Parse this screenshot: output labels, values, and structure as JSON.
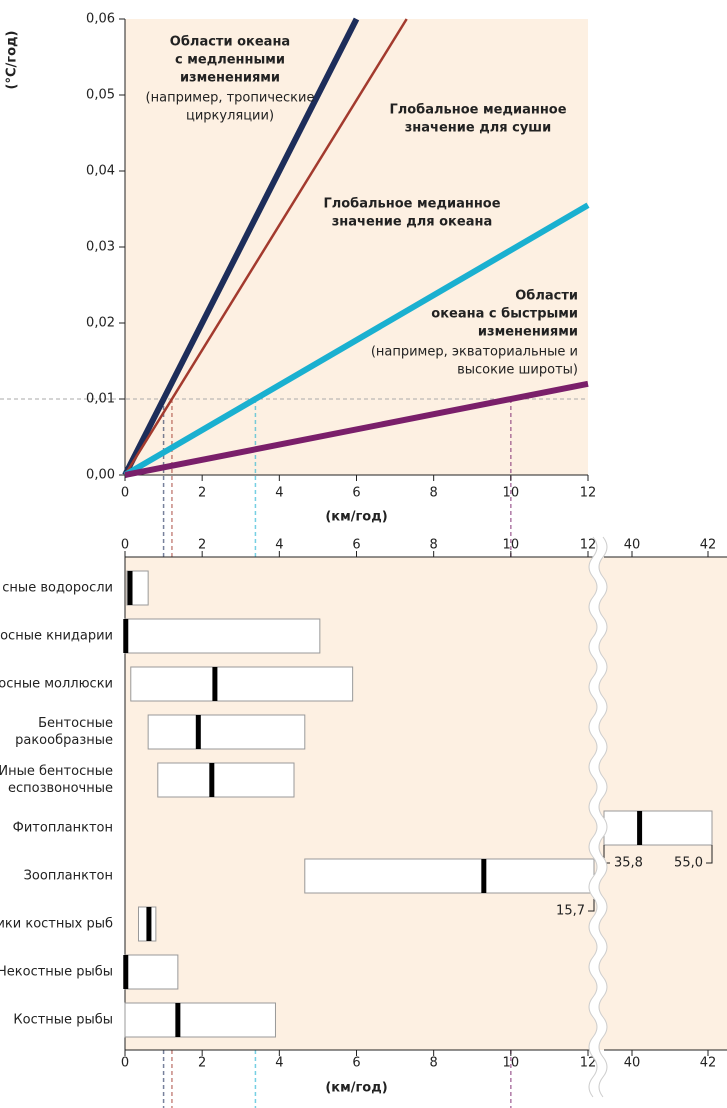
{
  "chart_data": [
    {
      "type": "line",
      "xlabel": "(км/год)",
      "ylabel": "(°C/год)",
      "xlim": [
        0,
        12
      ],
      "ylim": [
        0,
        0.06
      ],
      "xticks": [
        0,
        2,
        4,
        6,
        8,
        10,
        12
      ],
      "yticks": [
        {
          "value": 0,
          "label": "0,00"
        },
        {
          "value": 0.01,
          "label": "0,01"
        },
        {
          "value": 0.02,
          "label": "0,02"
        },
        {
          "value": 0.03,
          "label": "0,03"
        },
        {
          "value": 0.04,
          "label": "0,04"
        },
        {
          "value": 0.05,
          "label": "0,05"
        },
        {
          "value": 0.06,
          "label": "0,06"
        }
      ],
      "guide_y": 0.01,
      "series": [
        {
          "name_lines": [
            "Области океана",
            "с медленными",
            "изменениями"
          ],
          "note_lines": [
            "(например, тропические",
            "циркуляции)"
          ],
          "color": "#1d2d5a",
          "x": [
            0,
            6
          ],
          "values": [
            0,
            0.06
          ]
        },
        {
          "name_lines": [
            "Глобальное медианное",
            "значение для суши"
          ],
          "color": "#a33a2e",
          "x": [
            0,
            7.3
          ],
          "values": [
            0,
            0.06
          ]
        },
        {
          "name_lines": [
            "Глобальное медианное",
            "значение для океана"
          ],
          "color": "#1ab0d0",
          "x": [
            0,
            12
          ],
          "values": [
            0,
            0.0355
          ]
        },
        {
          "name_lines": [
            "Области",
            "океана с быстрыми",
            "изменениями"
          ],
          "note_lines": [
            "(например, экваториальные и",
            "высокие широты)"
          ],
          "color": "#7a1f6a",
          "x": [
            0,
            12
          ],
          "values": [
            0,
            0.012
          ]
        }
      ]
    },
    {
      "type": "range",
      "xlabel": "(км/год)",
      "xlim": [
        0,
        12
      ],
      "xlim2": [
        40,
        42
      ],
      "xticks": [
        0,
        2,
        4,
        6,
        8,
        10,
        12
      ],
      "xticks2": [
        40,
        42
      ],
      "rows": [
        {
          "label_lines": [
            "сные водоросли"
          ],
          "min": 0.05,
          "median": 0.13,
          "max": 0.6
        },
        {
          "label_lines": [
            "осные книдарии"
          ],
          "min": 0,
          "median": 0.02,
          "max": 5.05
        },
        {
          "label_lines": [
            "осные моллюски"
          ],
          "min": 0.15,
          "median": 2.33,
          "max": 5.9
        },
        {
          "label_lines": [
            "Бентосные",
            "ракообразные"
          ],
          "min": 0.6,
          "median": 1.9,
          "max": 4.66
        },
        {
          "label_lines": [
            "Иные бентосные",
            "еспозвоночные"
          ],
          "min": 0.85,
          "median": 2.25,
          "max": 4.38
        },
        {
          "label_lines": [
            "Фитопланктон"
          ],
          "min": 35.8,
          "median": 40.2,
          "max": 55.0,
          "min_label": "35,8",
          "max_label": "55,0"
        },
        {
          "label_lines": [
            "Зоопланктон"
          ],
          "min": 4.66,
          "median": 9.3,
          "max": 15.7,
          "max_label": "15,7"
        },
        {
          "label_lines": [
            "ики костных рыб"
          ],
          "min": 0.35,
          "median": 0.62,
          "max": 0.8
        },
        {
          "label_lines": [
            "Некостные рыбы"
          ],
          "min": 0,
          "median": 0.02,
          "max": 1.37
        },
        {
          "label_lines": [
            "Костные рыбы"
          ],
          "min": 0,
          "median": 1.37,
          "max": 3.9
        }
      ]
    }
  ]
}
